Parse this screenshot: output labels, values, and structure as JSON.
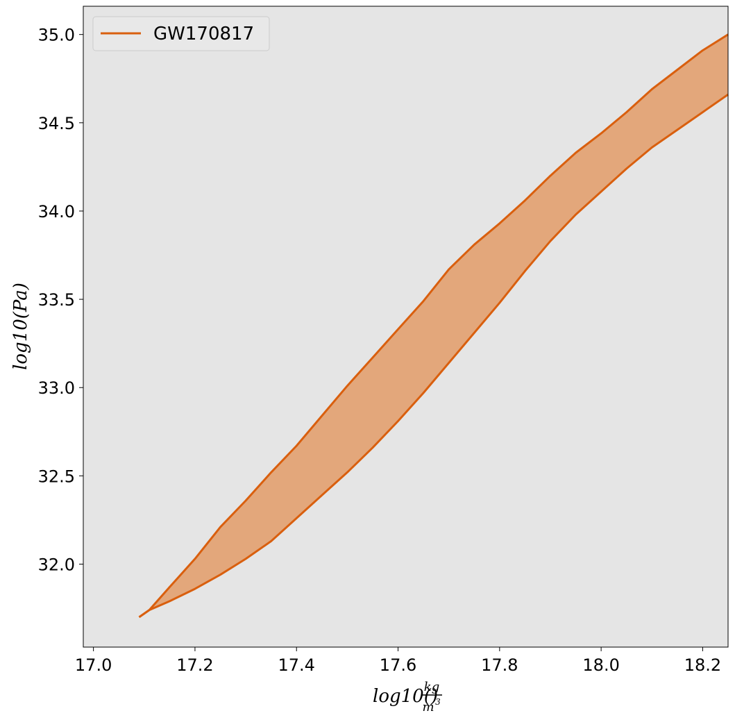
{
  "chart_data": {
    "type": "area",
    "xlabel_prefix": "log10(",
    "xlabel_num": "kg",
    "xlabel_den": "m",
    "xlabel_den_exp": "3",
    "xlabel_suffix": ")",
    "ylabel": "log10(Pa)",
    "xlim": [
      16.98,
      18.25
    ],
    "ylim": [
      31.53,
      35.16
    ],
    "xticks": [
      17.0,
      17.2,
      17.4,
      17.6,
      17.8,
      18.0,
      18.2
    ],
    "xtick_labels": [
      "17.0",
      "17.2",
      "17.4",
      "17.6",
      "17.8",
      "18.0",
      "18.2"
    ],
    "yticks": [
      32.0,
      32.5,
      33.0,
      33.5,
      34.0,
      34.5,
      35.0
    ],
    "ytick_labels": [
      "32.0",
      "32.5",
      "33.0",
      "33.5",
      "34.0",
      "34.5",
      "35.0"
    ],
    "grid": false,
    "legend_position": "top-left",
    "series": [
      {
        "name": "GW170817",
        "color": "#d95f0e",
        "fill_color": "#e3a77b",
        "upper": [
          [
            17.09,
            31.7
          ],
          [
            17.11,
            31.74
          ],
          [
            17.15,
            31.87
          ],
          [
            17.2,
            32.03
          ],
          [
            17.25,
            32.21
          ],
          [
            17.3,
            32.36
          ],
          [
            17.35,
            32.52
          ],
          [
            17.4,
            32.67
          ],
          [
            17.45,
            32.84
          ],
          [
            17.5,
            33.01
          ],
          [
            17.55,
            33.17
          ],
          [
            17.6,
            33.33
          ],
          [
            17.65,
            33.49
          ],
          [
            17.7,
            33.67
          ],
          [
            17.75,
            33.81
          ],
          [
            17.8,
            33.93
          ],
          [
            17.85,
            34.06
          ],
          [
            17.9,
            34.2
          ],
          [
            17.95,
            34.33
          ],
          [
            18.0,
            34.44
          ],
          [
            18.05,
            34.56
          ],
          [
            18.1,
            34.69
          ],
          [
            18.15,
            34.8
          ],
          [
            18.2,
            34.91
          ],
          [
            18.25,
            35.0
          ]
        ],
        "lower": [
          [
            17.09,
            31.7
          ],
          [
            17.11,
            31.74
          ],
          [
            17.15,
            31.79
          ],
          [
            17.2,
            31.86
          ],
          [
            17.25,
            31.94
          ],
          [
            17.3,
            32.03
          ],
          [
            17.35,
            32.13
          ],
          [
            17.4,
            32.26
          ],
          [
            17.45,
            32.39
          ],
          [
            17.5,
            32.52
          ],
          [
            17.55,
            32.66
          ],
          [
            17.6,
            32.81
          ],
          [
            17.65,
            32.97
          ],
          [
            17.7,
            33.14
          ],
          [
            17.75,
            33.31
          ],
          [
            17.8,
            33.48
          ],
          [
            17.85,
            33.66
          ],
          [
            17.9,
            33.83
          ],
          [
            17.95,
            33.98
          ],
          [
            18.0,
            34.11
          ],
          [
            18.05,
            34.24
          ],
          [
            18.1,
            34.36
          ],
          [
            18.15,
            34.46
          ],
          [
            18.2,
            34.56
          ],
          [
            18.25,
            34.66
          ]
        ]
      }
    ]
  }
}
